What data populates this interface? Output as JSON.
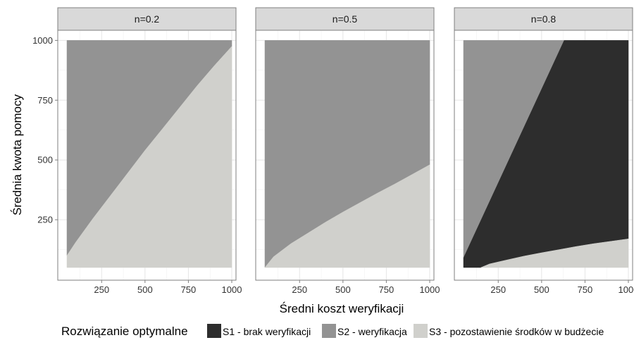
{
  "chart_data": {
    "type": "area",
    "xlabel": "Średni koszt weryfikacji",
    "ylabel": "Średnia kwota pomocy",
    "xlim": [
      0,
      1000
    ],
    "ylim": [
      0,
      1000
    ],
    "x_ticks": [
      "250",
      "500",
      "750",
      "1000"
    ],
    "y_ticks": [
      "250",
      "500",
      "750",
      "1000"
    ],
    "grid": true,
    "legend": {
      "title": "Rozwiązanie optymalne",
      "placement": "bottom",
      "entries": [
        {
          "key": "S1",
          "label": "S1 - brak weryfikacji",
          "color": "#2d2d2d"
        },
        {
          "key": "S2",
          "label": "S2 - weryfikacja",
          "color": "#939393"
        },
        {
          "key": "S3",
          "label": "S3 - pozostawienie środków w budżecie",
          "color": "#d0d0cc"
        }
      ]
    },
    "data_range": {
      "x": [
        50,
        1000
      ],
      "y": [
        50,
        1000
      ]
    },
    "panels": [
      {
        "label": "n=0.2",
        "regions": [
          {
            "key": "S2",
            "polygon": [
              [
                50,
                1000
              ],
              [
                1000,
                1000
              ],
              [
                1000,
                975
              ],
              [
                900,
                895
              ],
              [
                800,
                810
              ],
              [
                700,
                720
              ],
              [
                600,
                630
              ],
              [
                500,
                540
              ],
              [
                400,
                445
              ],
              [
                300,
                350
              ],
              [
                200,
                255
              ],
              [
                100,
                155
              ],
              [
                50,
                100
              ]
            ]
          },
          {
            "key": "S3",
            "polygon": [
              [
                50,
                50
              ],
              [
                1000,
                50
              ],
              [
                1000,
                975
              ],
              [
                900,
                895
              ],
              [
                800,
                810
              ],
              [
                700,
                720
              ],
              [
                600,
                630
              ],
              [
                500,
                540
              ],
              [
                400,
                445
              ],
              [
                300,
                350
              ],
              [
                200,
                255
              ],
              [
                100,
                155
              ],
              [
                50,
                100
              ]
            ]
          }
        ]
      },
      {
        "label": "n=0.5",
        "regions": [
          {
            "key": "S2",
            "polygon": [
              [
                50,
                1000
              ],
              [
                1000,
                1000
              ],
              [
                1000,
                480
              ],
              [
                900,
                440
              ],
              [
                800,
                400
              ],
              [
                700,
                362
              ],
              [
                600,
                322
              ],
              [
                500,
                282
              ],
              [
                400,
                240
              ],
              [
                300,
                195
              ],
              [
                200,
                150
              ],
              [
                100,
                95
              ],
              [
                50,
                50
              ]
            ]
          },
          {
            "key": "S3",
            "polygon": [
              [
                50,
                50
              ],
              [
                1000,
                50
              ],
              [
                1000,
                480
              ],
              [
                900,
                440
              ],
              [
                800,
                400
              ],
              [
                700,
                362
              ],
              [
                600,
                322
              ],
              [
                500,
                282
              ],
              [
                400,
                240
              ],
              [
                300,
                195
              ],
              [
                200,
                150
              ],
              [
                100,
                95
              ],
              [
                50,
                50
              ]
            ]
          }
        ]
      },
      {
        "label": "n=0.8",
        "regions": [
          {
            "key": "S2",
            "polygon": [
              [
                50,
                1000
              ],
              [
                630,
                1000
              ],
              [
                50,
                90
              ]
            ]
          },
          {
            "key": "S1",
            "polygon": [
              [
                50,
                90
              ],
              [
                630,
                1000
              ],
              [
                1000,
                1000
              ],
              [
                1000,
                170
              ],
              [
                900,
                160
              ],
              [
                800,
                150
              ],
              [
                700,
                138
              ],
              [
                600,
                125
              ],
              [
                500,
                112
              ],
              [
                400,
                98
              ],
              [
                300,
                82
              ],
              [
                200,
                65
              ],
              [
                150,
                50
              ],
              [
                50,
                50
              ]
            ]
          },
          {
            "key": "S3",
            "polygon": [
              [
                150,
                50
              ],
              [
                1000,
                50
              ],
              [
                1000,
                170
              ],
              [
                900,
                160
              ],
              [
                800,
                150
              ],
              [
                700,
                138
              ],
              [
                600,
                125
              ],
              [
                500,
                112
              ],
              [
                400,
                98
              ],
              [
                300,
                82
              ],
              [
                200,
                65
              ]
            ]
          }
        ]
      }
    ]
  }
}
